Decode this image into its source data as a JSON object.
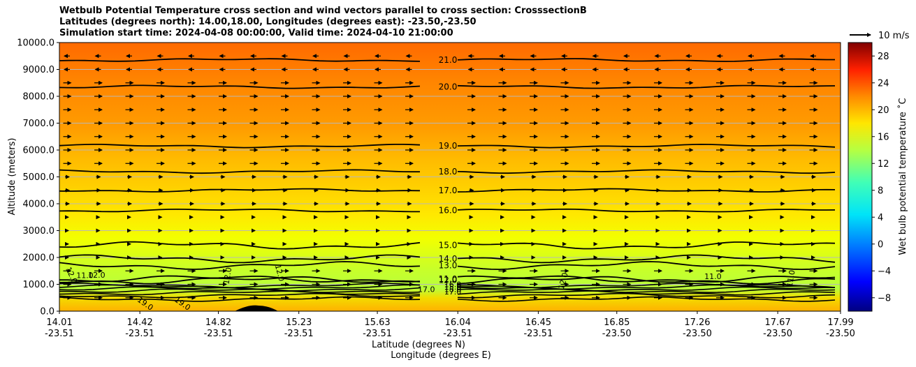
{
  "chart_data": {
    "type": "heatmap",
    "title_lines": [
      "Wetbulb Potential Temperature cross section and wind vectors parallel to cross section: CrosssectionB",
      "Latitudes (degrees north): 14.00,18.00, Longitudes (degrees east): -23.50,-23.50",
      "Simulation start time: 2024-04-08 00:00:00, Valid time: 2024-04-10 21:00:00"
    ],
    "ylabel": "Altitude (meters)",
    "xlabel": "Latitude (degrees N)",
    "xlabel2": "Longitude (degrees E)",
    "ylim": [
      0,
      10000
    ],
    "yticks": [
      "0.0",
      "1000.0",
      "2000.0",
      "3000.0",
      "4000.0",
      "5000.0",
      "6000.0",
      "7000.0",
      "8000.0",
      "9000.0",
      "10000.0"
    ],
    "xticks_lat": [
      "14.01",
      "14.42",
      "14.82",
      "15.23",
      "15.63",
      "16.04",
      "16.45",
      "16.85",
      "17.26",
      "17.67",
      "17.99"
    ],
    "xticks_lon": [
      "-23.51",
      "-23.51",
      "-23.51",
      "-23.51",
      "-23.51",
      "-23.51",
      "-23.51",
      "-23.50",
      "-23.50",
      "-23.50",
      "-23.50"
    ],
    "xlim": [
      14.01,
      17.99
    ],
    "grid": "horizontal",
    "colorbar": {
      "label": "Wet bulb potential temperature ˚C",
      "ticks": [
        "−8",
        "−4",
        "0",
        "4",
        "8",
        "12",
        "16",
        "20",
        "24",
        "28"
      ],
      "range": [
        -10,
        30
      ]
    },
    "quiver_key": "10 m/s",
    "contours": [
      {
        "label": "21.0",
        "altitude": 9350,
        "dx": -80
      },
      {
        "label": "20.0",
        "altitude": 8350,
        "dx": -200
      },
      {
        "label": "19.0",
        "altitude": 6150,
        "dx": -150
      },
      {
        "label": "18.0",
        "altitude": 5200,
        "dx": -80
      },
      {
        "label": "17.0",
        "altitude": 4500,
        "dx": -60
      },
      {
        "label": "16.0",
        "altitude": 3750,
        "dx": -40
      },
      {
        "label": "15.0",
        "altitude": 2450,
        "dx": 60
      },
      {
        "label": "14.0",
        "altitude": 1950,
        "dx": 100
      },
      {
        "label": "13.0",
        "altitude": 1700,
        "dx": 100
      },
      {
        "label": "12.0",
        "altitude": 1150,
        "dx": 200
      },
      {
        "label": "11.0",
        "altitude": 1200,
        "dx": 150
      }
    ],
    "low_labels": [
      "16.0",
      "15.0",
      "18.0",
      "17.0"
    ],
    "small_labels": [
      {
        "label": "12.0",
        "lat": 14.06,
        "alt": 1300,
        "rot": 65
      },
      {
        "label": "11.0",
        "lat": 14.14,
        "alt": 1240,
        "rot": 0
      },
      {
        "label": "12.0",
        "lat": 14.2,
        "alt": 1250,
        "rot": 0
      },
      {
        "label": "12.0",
        "lat": 14.88,
        "alt": 1300,
        "rot": -80
      },
      {
        "label": "12.0",
        "lat": 15.12,
        "alt": 1400,
        "rot": 75
      },
      {
        "label": "12.0",
        "lat": 16.59,
        "alt": 1100,
        "rot": -75
      },
      {
        "label": "11.0",
        "lat": 17.34,
        "alt": 1200,
        "rot": 0
      },
      {
        "label": "11.0",
        "lat": 17.75,
        "alt": 1200,
        "rot": -80
      },
      {
        "label": "19.0",
        "lat": 14.44,
        "alt": 200,
        "rot": 35
      },
      {
        "label": "19.0",
        "lat": 14.63,
        "alt": 200,
        "rot": 35
      },
      {
        "label": "17.0",
        "lat": 15.88,
        "alt": 720,
        "rot": 0
      }
    ]
  }
}
